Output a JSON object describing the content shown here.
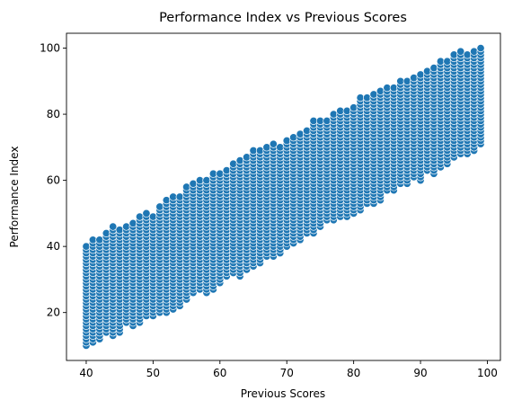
{
  "chart_data": {
    "type": "scatter",
    "title": "Performance Index vs Previous Scores",
    "xlabel": "Previous Scores",
    "ylabel": "Performance Index",
    "xlim": [
      37.05,
      101.95
    ],
    "ylim": [
      5.5,
      104.5
    ],
    "xticks": [
      40,
      50,
      60,
      70,
      80,
      90,
      100
    ],
    "yticks": [
      20,
      40,
      60,
      80,
      100
    ],
    "grid": false,
    "legend": "none",
    "marker_color": "#1f77b4",
    "band": [
      {
        "x": 40,
        "y_min": 10,
        "y_max": 40
      },
      {
        "x": 45,
        "y_min": 15,
        "y_max": 46
      },
      {
        "x": 50,
        "y_min": 19,
        "y_max": 50
      },
      {
        "x": 55,
        "y_min": 24,
        "y_max": 58
      },
      {
        "x": 60,
        "y_min": 29,
        "y_max": 62
      },
      {
        "x": 65,
        "y_min": 34,
        "y_max": 68
      },
      {
        "x": 70,
        "y_min": 40,
        "y_max": 72
      },
      {
        "x": 75,
        "y_min": 46,
        "y_max": 78
      },
      {
        "x": 80,
        "y_min": 50,
        "y_max": 83
      },
      {
        "x": 85,
        "y_min": 56,
        "y_max": 88
      },
      {
        "x": 90,
        "y_min": 61,
        "y_max": 92
      },
      {
        "x": 95,
        "y_min": 67,
        "y_max": 97
      },
      {
        "x": 99,
        "y_min": 70,
        "y_max": 100
      }
    ]
  }
}
